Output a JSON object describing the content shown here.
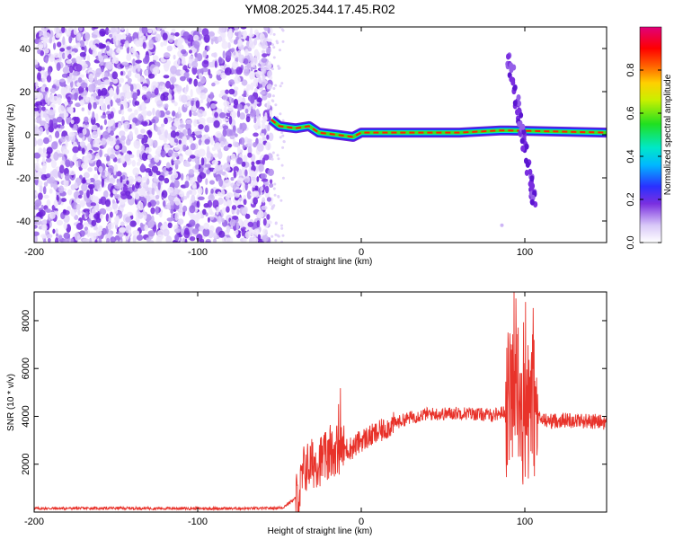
{
  "title": "YM08.2025.344.17.45.R02",
  "colors": {
    "snr_line": "#e8322a",
    "scatter_purple": "#7a2fe0",
    "axis": "#000000"
  },
  "chart_data": [
    {
      "type": "heatmap",
      "xlabel": "Height of straight line (km)",
      "ylabel": "Frequency (Hz)",
      "xlim": [
        -200,
        150
      ],
      "ylim": [
        -50,
        50
      ],
      "xticks": [
        -200,
        -100,
        0,
        100
      ],
      "yticks": [
        -40,
        -20,
        0,
        20,
        40
      ],
      "grid": false,
      "colorbar": {
        "label": "Normalized spectral amplitude",
        "range": [
          0.0,
          1.0
        ],
        "ticks": [
          0.0,
          0.2,
          0.4,
          0.6,
          0.8
        ]
      },
      "features": {
        "noise_region_x": [
          -200,
          -55
        ],
        "carrier_trace": [
          {
            "x": -55,
            "y": 7
          },
          {
            "x": -50,
            "y": 4
          },
          {
            "x": -40,
            "y": 3
          },
          {
            "x": -32,
            "y": 4
          },
          {
            "x": -26,
            "y": 1
          },
          {
            "x": -15,
            "y": 0
          },
          {
            "x": -5,
            "y": -1
          },
          {
            "x": 0,
            "y": 1
          },
          {
            "x": 30,
            "y": 1
          },
          {
            "x": 60,
            "y": 1
          },
          {
            "x": 85,
            "y": 2
          },
          {
            "x": 90,
            "y": 2
          },
          {
            "x": 150,
            "y": 1
          }
        ],
        "streak": {
          "x_start": 90,
          "y_start": 38,
          "x_end": 106,
          "y_end": -32
        }
      }
    },
    {
      "type": "line",
      "xlabel": "Height of straight line (km)",
      "ylabel": "SNR (10 * v/v)",
      "xlim": [
        -200,
        150
      ],
      "ylim": [
        0,
        9200
      ],
      "xticks": [
        -200,
        -100,
        0,
        100
      ],
      "yticks": [
        2000,
        4000,
        6000,
        8000
      ],
      "grid": false,
      "series": [
        {
          "x": [
            -200,
            -150,
            -100,
            -60,
            -48,
            -38,
            -35,
            -28,
            -20,
            -15,
            -12,
            -5,
            0,
            10,
            20,
            30,
            40,
            50,
            60,
            70,
            80,
            88,
            92,
            95,
            98,
            100,
            104,
            108,
            115,
            125,
            140,
            150
          ],
          "y": [
            150,
            160,
            150,
            150,
            180,
            700,
            1800,
            2100,
            2300,
            2700,
            2600,
            2700,
            3000,
            3300,
            3700,
            3950,
            4100,
            4100,
            4150,
            4100,
            4050,
            4200,
            5200,
            5500,
            3200,
            4000,
            4500,
            3900,
            3800,
            3850,
            3800,
            3750
          ]
        }
      ]
    }
  ]
}
